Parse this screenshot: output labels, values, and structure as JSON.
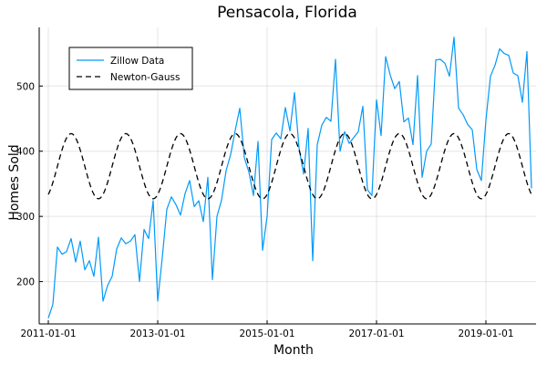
{
  "chart_data": {
    "type": "line",
    "title": "Pensacola, Florida",
    "xlabel": "Month",
    "ylabel": "Homes Sold",
    "x_ticks": [
      "2011-01-01",
      "2013-01-01",
      "2015-01-01",
      "2017-01-01",
      "2019-01-01"
    ],
    "y_ticks": [
      200,
      300,
      400,
      500
    ],
    "xlim": [
      "2010-11-01",
      "2019-12-01"
    ],
    "ylim": [
      135,
      590
    ],
    "grid": true,
    "legend_position": "top-left",
    "x_start": "2011-01",
    "x_step": "1 month",
    "series": [
      {
        "name": "Zillow Data",
        "color": "#009af9",
        "style": "solid",
        "values": [
          144,
          165,
          253,
          242,
          246,
          266,
          230,
          262,
          218,
          232,
          208,
          268,
          170,
          194,
          208,
          250,
          267,
          258,
          262,
          272,
          200,
          280,
          266,
          324,
          170,
          237,
          311,
          330,
          318,
          302,
          335,
          355,
          315,
          324,
          292,
          360,
          203,
          300,
          325,
          370,
          395,
          432,
          466,
          390,
          368,
          332,
          415,
          248,
          300,
          418,
          428,
          419,
          467,
          431,
          490,
          405,
          365,
          435,
          232,
          410,
          440,
          452,
          446,
          541,
          400,
          430,
          412,
          421,
          430,
          469,
          341,
          332,
          479,
          424,
          545,
          517,
          496,
          507,
          445,
          451,
          410,
          516,
          360,
          400,
          411,
          540,
          541,
          535,
          515,
          575,
          466,
          456,
          441,
          433,
          372,
          355,
          448,
          515,
          532,
          557,
          550,
          547,
          520,
          516,
          475,
          553,
          343
        ]
      },
      {
        "name": "Newton-Gauss",
        "color": "#000000",
        "style": "dashed",
        "function": "377 + 50 * sin(2*pi*(month_index - 2)/12)"
      }
    ]
  }
}
